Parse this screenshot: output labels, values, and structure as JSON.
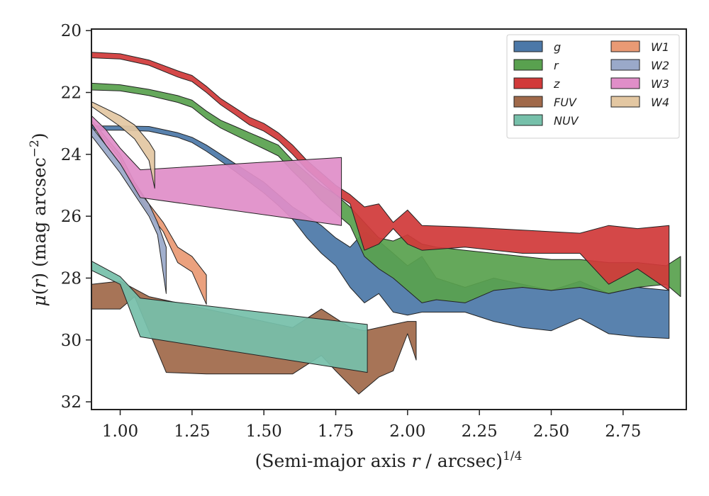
{
  "chart_data": {
    "type": "area",
    "xlabel": "(Semi-major axis r / arcsec)^{1/4}",
    "ylabel": "μ(r) (mag arcsec^{-2})",
    "xlim": [
      0.9,
      2.97
    ],
    "ylim": [
      32.25,
      19.95
    ],
    "y_inverted": true,
    "x_ticks": [
      1.0,
      1.25,
      1.5,
      1.75,
      2.0,
      2.25,
      2.5,
      2.75
    ],
    "x_tick_labels": [
      "1.00",
      "1.25",
      "1.50",
      "1.75",
      "2.00",
      "2.25",
      "2.50",
      "2.75"
    ],
    "y_ticks": [
      20,
      22,
      24,
      26,
      28,
      30,
      32
    ],
    "y_tick_labels": [
      "20",
      "22",
      "24",
      "26",
      "28",
      "30",
      "32"
    ],
    "legend_placement": "top-right",
    "series": [
      {
        "name": "g",
        "color": "#4c78a8",
        "upper": [
          [
            0.9,
            23.08
          ],
          [
            1.0,
            23.08
          ],
          [
            1.1,
            23.1
          ],
          [
            1.2,
            23.3
          ],
          [
            1.25,
            23.45
          ],
          [
            1.3,
            23.7
          ],
          [
            1.35,
            24.0
          ],
          [
            1.4,
            24.3
          ],
          [
            1.45,
            24.6
          ],
          [
            1.5,
            24.9
          ],
          [
            1.55,
            25.3
          ],
          [
            1.6,
            25.7
          ],
          [
            1.65,
            26.0
          ],
          [
            1.7,
            26.3
          ],
          [
            1.75,
            26.7
          ],
          [
            1.8,
            27.0
          ],
          [
            1.85,
            26.5
          ],
          [
            1.9,
            26.8
          ],
          [
            1.95,
            27.2
          ],
          [
            2.0,
            27.6
          ],
          [
            2.05,
            27.3
          ],
          [
            2.1,
            28.0
          ],
          [
            2.2,
            28.3
          ],
          [
            2.3,
            28.0
          ],
          [
            2.4,
            28.2
          ],
          [
            2.5,
            28.4
          ],
          [
            2.6,
            28.1
          ],
          [
            2.7,
            28.5
          ],
          [
            2.8,
            28.3
          ],
          [
            2.91,
            28.4
          ]
        ],
        "lower": [
          [
            0.9,
            23.22
          ],
          [
            1.0,
            23.22
          ],
          [
            1.1,
            23.25
          ],
          [
            1.2,
            23.45
          ],
          [
            1.25,
            23.62
          ],
          [
            1.3,
            23.9
          ],
          [
            1.35,
            24.22
          ],
          [
            1.4,
            24.55
          ],
          [
            1.45,
            24.9
          ],
          [
            1.5,
            25.25
          ],
          [
            1.55,
            25.65
          ],
          [
            1.6,
            26.1
          ],
          [
            1.65,
            26.7
          ],
          [
            1.7,
            27.2
          ],
          [
            1.75,
            27.6
          ],
          [
            1.8,
            28.3
          ],
          [
            1.85,
            28.8
          ],
          [
            1.9,
            28.5
          ],
          [
            1.95,
            29.1
          ],
          [
            2.0,
            29.2
          ],
          [
            2.05,
            29.1
          ],
          [
            2.1,
            29.1
          ],
          [
            2.2,
            29.1
          ],
          [
            2.3,
            29.4
          ],
          [
            2.4,
            29.6
          ],
          [
            2.5,
            29.7
          ],
          [
            2.6,
            29.3
          ],
          [
            2.7,
            29.8
          ],
          [
            2.8,
            29.9
          ],
          [
            2.91,
            29.95
          ]
        ]
      },
      {
        "name": "r",
        "color": "#59a14f",
        "upper": [
          [
            0.9,
            21.7
          ],
          [
            1.0,
            21.75
          ],
          [
            1.1,
            21.9
          ],
          [
            1.2,
            22.1
          ],
          [
            1.25,
            22.25
          ],
          [
            1.3,
            22.6
          ],
          [
            1.35,
            22.9
          ],
          [
            1.4,
            23.1
          ],
          [
            1.45,
            23.3
          ],
          [
            1.5,
            23.5
          ],
          [
            1.55,
            23.7
          ],
          [
            1.6,
            24.2
          ],
          [
            1.65,
            24.6
          ],
          [
            1.7,
            25.0
          ],
          [
            1.75,
            25.3
          ],
          [
            1.8,
            25.7
          ],
          [
            1.85,
            26.2
          ],
          [
            1.9,
            26.7
          ],
          [
            1.95,
            26.8
          ],
          [
            2.0,
            26.6
          ],
          [
            2.05,
            26.9
          ],
          [
            2.1,
            27.0
          ],
          [
            2.2,
            27.1
          ],
          [
            2.3,
            27.2
          ],
          [
            2.4,
            27.3
          ],
          [
            2.5,
            27.4
          ],
          [
            2.6,
            27.4
          ],
          [
            2.7,
            27.5
          ],
          [
            2.8,
            27.5
          ],
          [
            2.9,
            27.6
          ],
          [
            2.95,
            27.3
          ]
        ],
        "lower": [
          [
            0.9,
            21.92
          ],
          [
            1.0,
            21.95
          ],
          [
            1.1,
            22.1
          ],
          [
            1.2,
            22.32
          ],
          [
            1.25,
            22.48
          ],
          [
            1.3,
            22.85
          ],
          [
            1.35,
            23.15
          ],
          [
            1.4,
            23.38
          ],
          [
            1.45,
            23.6
          ],
          [
            1.5,
            23.82
          ],
          [
            1.55,
            24.05
          ],
          [
            1.6,
            24.55
          ],
          [
            1.65,
            25.0
          ],
          [
            1.7,
            25.5
          ],
          [
            1.75,
            25.9
          ],
          [
            1.8,
            26.3
          ],
          [
            1.85,
            27.3
          ],
          [
            1.9,
            27.7
          ],
          [
            1.95,
            28.0
          ],
          [
            2.0,
            28.4
          ],
          [
            2.05,
            28.8
          ],
          [
            2.1,
            28.7
          ],
          [
            2.2,
            28.8
          ],
          [
            2.3,
            28.4
          ],
          [
            2.4,
            28.3
          ],
          [
            2.5,
            28.4
          ],
          [
            2.6,
            28.3
          ],
          [
            2.7,
            28.5
          ],
          [
            2.8,
            28.3
          ],
          [
            2.9,
            28.2
          ],
          [
            2.95,
            28.6
          ]
        ]
      },
      {
        "name": "z",
        "color": "#d13a3a",
        "upper": [
          [
            0.9,
            20.7
          ],
          [
            1.0,
            20.75
          ],
          [
            1.1,
            20.95
          ],
          [
            1.2,
            21.3
          ],
          [
            1.25,
            21.45
          ],
          [
            1.3,
            21.8
          ],
          [
            1.35,
            22.2
          ],
          [
            1.4,
            22.5
          ],
          [
            1.45,
            22.8
          ],
          [
            1.5,
            23.0
          ],
          [
            1.55,
            23.3
          ],
          [
            1.6,
            23.7
          ],
          [
            1.65,
            24.2
          ],
          [
            1.7,
            24.6
          ],
          [
            1.75,
            25.0
          ],
          [
            1.8,
            25.3
          ],
          [
            1.85,
            25.7
          ],
          [
            1.9,
            25.6
          ],
          [
            1.95,
            26.2
          ],
          [
            2.0,
            25.8
          ],
          [
            2.05,
            26.3
          ],
          [
            2.2,
            26.35
          ],
          [
            2.4,
            26.45
          ],
          [
            2.6,
            26.55
          ],
          [
            2.7,
            26.3
          ],
          [
            2.8,
            26.4
          ],
          [
            2.91,
            26.3
          ]
        ],
        "lower": [
          [
            0.9,
            20.88
          ],
          [
            1.0,
            20.92
          ],
          [
            1.1,
            21.12
          ],
          [
            1.2,
            21.5
          ],
          [
            1.25,
            21.65
          ],
          [
            1.3,
            22.0
          ],
          [
            1.35,
            22.4
          ],
          [
            1.4,
            22.72
          ],
          [
            1.45,
            23.05
          ],
          [
            1.5,
            23.25
          ],
          [
            1.55,
            23.55
          ],
          [
            1.6,
            24.0
          ],
          [
            1.65,
            24.5
          ],
          [
            1.7,
            24.9
          ],
          [
            1.75,
            25.3
          ],
          [
            1.8,
            25.6
          ],
          [
            1.85,
            27.1
          ],
          [
            1.9,
            26.9
          ],
          [
            1.95,
            26.4
          ],
          [
            2.0,
            26.9
          ],
          [
            2.05,
            27.1
          ],
          [
            2.2,
            27.0
          ],
          [
            2.4,
            27.2
          ],
          [
            2.6,
            27.2
          ],
          [
            2.7,
            28.2
          ],
          [
            2.8,
            27.7
          ],
          [
            2.91,
            28.4
          ]
        ]
      },
      {
        "name": "FUV",
        "color": "#a0694a",
        "upper": [
          [
            0.9,
            28.2
          ],
          [
            1.0,
            28.1
          ],
          [
            1.1,
            28.6
          ],
          [
            1.2,
            28.8
          ],
          [
            1.3,
            29.0
          ],
          [
            1.4,
            29.2
          ],
          [
            1.5,
            29.4
          ],
          [
            1.6,
            29.6
          ],
          [
            1.7,
            29.0
          ],
          [
            1.75,
            29.3
          ],
          [
            1.8,
            29.6
          ],
          [
            1.85,
            29.7
          ],
          [
            1.9,
            29.6
          ],
          [
            1.95,
            29.5
          ],
          [
            2.0,
            29.4
          ],
          [
            2.03,
            29.4
          ]
        ],
        "lower": [
          [
            0.9,
            29.0
          ],
          [
            1.0,
            29.0
          ],
          [
            1.05,
            28.6
          ],
          [
            1.16,
            31.05
          ],
          [
            1.3,
            31.1
          ],
          [
            1.4,
            31.1
          ],
          [
            1.6,
            31.1
          ],
          [
            1.7,
            30.5
          ],
          [
            1.75,
            31.0
          ],
          [
            1.83,
            31.75
          ],
          [
            1.9,
            31.2
          ],
          [
            1.95,
            31.0
          ],
          [
            2.0,
            29.8
          ],
          [
            2.03,
            30.65
          ]
        ]
      },
      {
        "name": "NUV",
        "color": "#76c0aa",
        "upper": [
          [
            0.9,
            27.45
          ],
          [
            1.0,
            27.95
          ],
          [
            1.07,
            28.65
          ],
          [
            1.86,
            29.5
          ]
        ],
        "lower": [
          [
            0.9,
            27.75
          ],
          [
            1.0,
            28.2
          ],
          [
            1.07,
            29.9
          ],
          [
            1.86,
            31.05
          ]
        ]
      },
      {
        "name": "W1",
        "color": "#e99a74",
        "upper": [
          [
            0.9,
            22.9
          ],
          [
            1.0,
            24.0
          ],
          [
            1.05,
            24.9
          ],
          [
            1.1,
            25.6
          ],
          [
            1.15,
            26.2
          ],
          [
            1.2,
            27.0
          ],
          [
            1.25,
            27.3
          ],
          [
            1.3,
            27.9
          ]
        ],
        "lower": [
          [
            0.9,
            23.0
          ],
          [
            1.0,
            24.15
          ],
          [
            1.05,
            25.2
          ],
          [
            1.1,
            25.9
          ],
          [
            1.15,
            26.5
          ],
          [
            1.2,
            27.5
          ],
          [
            1.25,
            27.8
          ],
          [
            1.3,
            28.85
          ]
        ]
      },
      {
        "name": "W2",
        "color": "#9aa9c9",
        "upper": [
          [
            0.9,
            23.1
          ],
          [
            1.0,
            24.3
          ],
          [
            1.05,
            25.0
          ],
          [
            1.1,
            25.6
          ],
          [
            1.13,
            26.2
          ],
          [
            1.16,
            27.0
          ]
        ],
        "lower": [
          [
            0.9,
            23.4
          ],
          [
            1.0,
            24.6
          ],
          [
            1.05,
            25.3
          ],
          [
            1.1,
            26.0
          ],
          [
            1.13,
            26.6
          ],
          [
            1.16,
            28.5
          ]
        ]
      },
      {
        "name": "W3",
        "color": "#e08ec8",
        "upper": [
          [
            0.9,
            22.75
          ],
          [
            0.95,
            23.2
          ],
          [
            1.0,
            23.8
          ],
          [
            1.07,
            24.5
          ],
          [
            1.77,
            24.1
          ]
        ],
        "lower": [
          [
            0.9,
            23.0
          ],
          [
            0.95,
            23.7
          ],
          [
            1.0,
            24.3
          ],
          [
            1.07,
            25.4
          ],
          [
            1.77,
            26.3
          ]
        ]
      },
      {
        "name": "W4",
        "color": "#e3c7a2",
        "upper": [
          [
            0.9,
            22.3
          ],
          [
            1.0,
            22.75
          ],
          [
            1.05,
            23.05
          ],
          [
            1.1,
            23.6
          ],
          [
            1.12,
            23.9
          ]
        ],
        "lower": [
          [
            0.9,
            22.45
          ],
          [
            1.0,
            23.1
          ],
          [
            1.05,
            23.5
          ],
          [
            1.1,
            24.2
          ],
          [
            1.12,
            25.1
          ]
        ]
      }
    ]
  }
}
